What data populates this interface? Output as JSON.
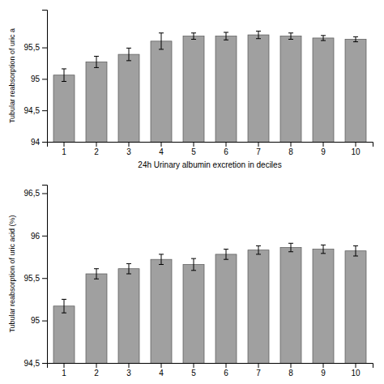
{
  "chart_data": [
    {
      "type": "bar",
      "categories": [
        "1",
        "2",
        "3",
        "4",
        "5",
        "6",
        "7",
        "8",
        "9",
        "10"
      ],
      "values": [
        95.06,
        95.27,
        95.39,
        95.6,
        95.68,
        95.68,
        95.7,
        95.68,
        95.65,
        95.63
      ],
      "errors": [
        0.1,
        0.09,
        0.1,
        0.13,
        0.05,
        0.06,
        0.06,
        0.05,
        0.04,
        0.04
      ],
      "ylim": [
        94.0,
        96.1
      ],
      "yticks": [
        94,
        {
          "value": 94.5,
          "label": "94,5"
        },
        95,
        {
          "value": 95.5,
          "label": "95,5"
        }
      ],
      "ylabel": "Tubular reabsorption of uric a",
      "xlabel": "24h Urinary albumin excretion in deciles",
      "color": "#a0a0a0"
    },
    {
      "type": "bar",
      "categories": [
        "1",
        "2",
        "3",
        "4",
        "5",
        "6",
        "7",
        "8",
        "9",
        "10"
      ],
      "values": [
        95.17,
        95.55,
        95.61,
        95.72,
        95.66,
        95.78,
        95.83,
        95.86,
        95.84,
        95.82
      ],
      "errors": [
        0.08,
        0.06,
        0.06,
        0.06,
        0.07,
        0.06,
        0.05,
        0.05,
        0.05,
        0.06
      ],
      "ylim": [
        94.5,
        96.6
      ],
      "yticks": [
        {
          "value": 94.5,
          "label": "94,5"
        },
        95,
        {
          "value": 95.5,
          "label": "95,5"
        },
        96,
        {
          "value": 96.5,
          "label": "96,5"
        }
      ],
      "ylabel": "Tubular reabsorption of uric acid (%)",
      "color": "#a0a0a0"
    }
  ]
}
